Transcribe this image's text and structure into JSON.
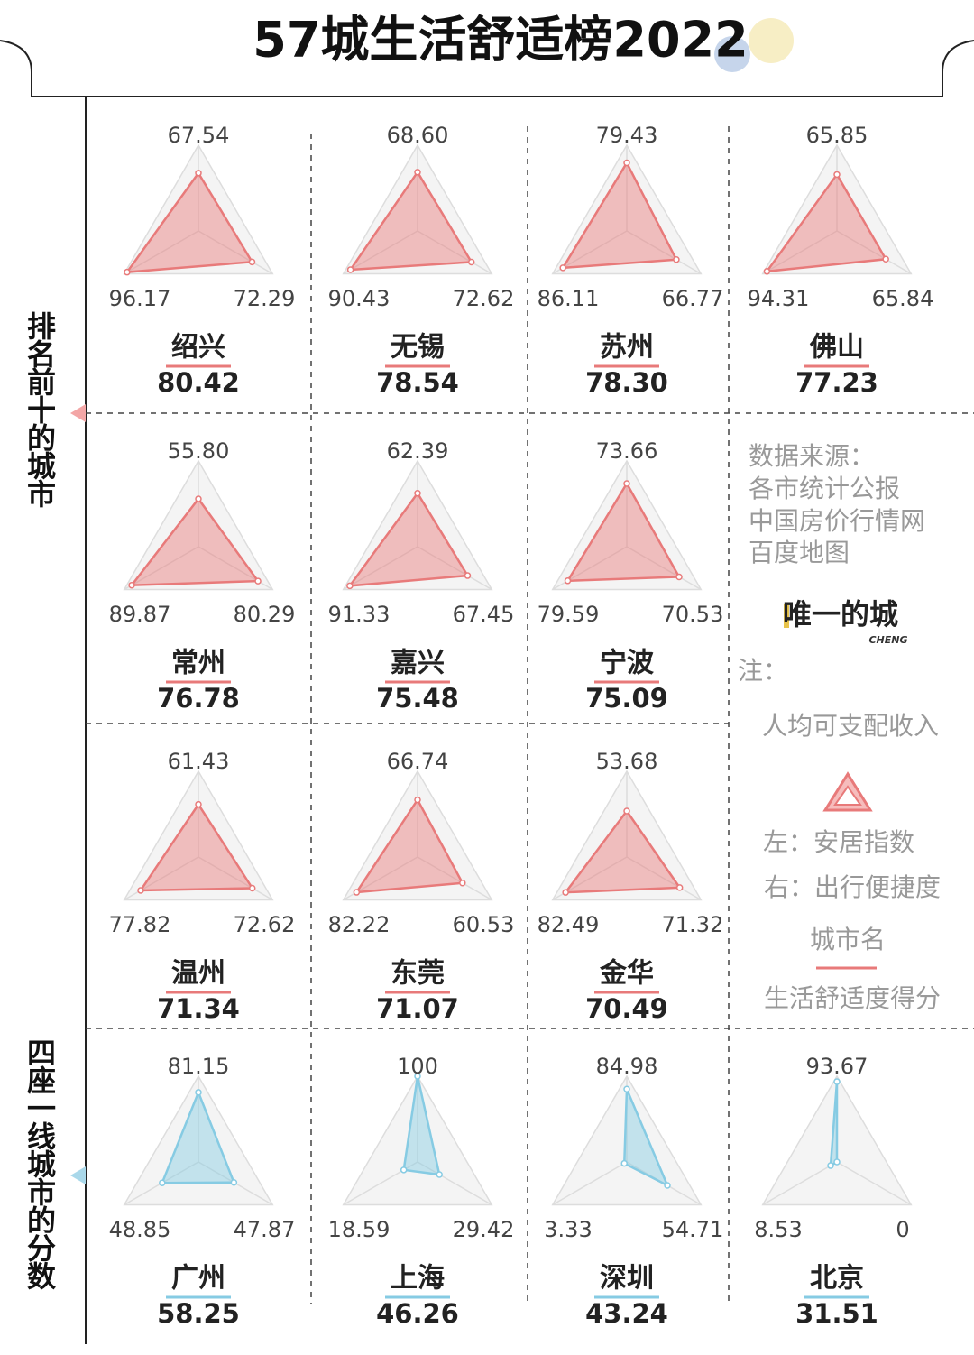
{
  "title": "57城生活舒适榜2022",
  "sections": [
    "排名前十的城市",
    "四座一线城市的分数"
  ],
  "legend": {
    "source_title": "数据来源：",
    "sources": [
      "各市统计公报",
      "中国房价行情网",
      "百度地图"
    ],
    "logo": "唯一的城",
    "logo_sub": "CHENG",
    "note": "注：",
    "top": "人均可支配收入",
    "left": "左：安居指数",
    "right": "右：出行便捷度",
    "name": "城市名",
    "score": "生活舒适度得分"
  },
  "chart_data": [
    {
      "type": "radar",
      "title": "绍兴",
      "score": 80.42,
      "values": [
        67.54,
        96.17,
        72.29
      ],
      "color": "#e87a7a",
      "rlim": [
        0,
        100
      ],
      "rticks": [
        25,
        50,
        75,
        100
      ]
    },
    {
      "type": "radar",
      "title": "无锡",
      "score": 78.54,
      "values": [
        68.6,
        90.43,
        72.62
      ],
      "value_labels": [
        "68.60",
        "90.43",
        "72.62"
      ],
      "color": "#e87a7a",
      "rlim": [
        0,
        100
      ],
      "rticks": [
        25,
        50,
        75,
        100
      ]
    },
    {
      "type": "radar",
      "title": "苏州",
      "score": 78.3,
      "score_label": "78.30",
      "values": [
        79.43,
        86.11,
        66.77
      ],
      "color": "#e87a7a",
      "rlim": [
        0,
        100
      ],
      "rticks": [
        25,
        50,
        75,
        100
      ]
    },
    {
      "type": "radar",
      "title": "佛山",
      "score": 77.23,
      "values": [
        65.85,
        94.31,
        65.84
      ],
      "color": "#e87a7a",
      "rlim": [
        0,
        100
      ],
      "rticks": [
        25,
        50,
        75,
        100
      ]
    },
    {
      "type": "radar",
      "title": "常州",
      "score": 76.78,
      "values": [
        55.8,
        89.87,
        80.29
      ],
      "value_labels": [
        "55.80",
        "89.87",
        "80.29"
      ],
      "color": "#e87a7a",
      "rlim": [
        0,
        100
      ],
      "rticks": [
        25,
        50,
        75,
        100
      ]
    },
    {
      "type": "radar",
      "title": "嘉兴",
      "score": 75.48,
      "values": [
        62.39,
        91.33,
        67.45
      ],
      "color": "#e87a7a",
      "rlim": [
        0,
        100
      ],
      "rticks": [
        25,
        50,
        75,
        100
      ]
    },
    {
      "type": "radar",
      "title": "宁波",
      "score": 75.09,
      "values": [
        73.66,
        79.59,
        70.53
      ],
      "color": "#e87a7a",
      "rlim": [
        0,
        100
      ],
      "rticks": [
        25,
        50,
        75,
        100
      ]
    },
    {
      "type": "radar",
      "title": "温州",
      "score": 71.34,
      "values": [
        61.43,
        77.82,
        72.62
      ],
      "color": "#e87a7a",
      "rlim": [
        0,
        100
      ],
      "rticks": [
        25,
        50,
        75,
        100
      ]
    },
    {
      "type": "radar",
      "title": "东莞",
      "score": 71.07,
      "values": [
        66.74,
        82.22,
        60.53
      ],
      "color": "#e87a7a",
      "rlim": [
        0,
        100
      ],
      "rticks": [
        25,
        50,
        75,
        100
      ]
    },
    {
      "type": "radar",
      "title": "金华",
      "score": 70.49,
      "values": [
        53.68,
        82.49,
        71.32
      ],
      "color": "#e87a7a",
      "rlim": [
        0,
        100
      ],
      "rticks": [
        25,
        50,
        75,
        100
      ]
    },
    {
      "type": "radar",
      "title": "广州",
      "score": 58.25,
      "values": [
        81.15,
        48.85,
        47.87
      ],
      "color": "#86cbe3",
      "rlim": [
        0,
        100
      ],
      "rticks": [
        25,
        50,
        75,
        100
      ]
    },
    {
      "type": "radar",
      "title": "上海",
      "score": 46.26,
      "values": [
        100,
        18.59,
        29.42
      ],
      "color": "#86cbe3",
      "rlim": [
        0,
        100
      ],
      "rticks": [
        25,
        50,
        75,
        100
      ]
    },
    {
      "type": "radar",
      "title": "深圳",
      "score": 43.24,
      "values": [
        84.98,
        3.33,
        54.71
      ],
      "color": "#86cbe3",
      "rlim": [
        0,
        100
      ],
      "rticks": [
        25,
        50,
        75,
        100
      ]
    },
    {
      "type": "radar",
      "title": "北京",
      "score": 31.51,
      "values": [
        93.67,
        8.53,
        0
      ],
      "color": "#86cbe3",
      "rlim": [
        0,
        100
      ],
      "rticks": [
        25,
        50,
        75,
        100
      ]
    }
  ]
}
